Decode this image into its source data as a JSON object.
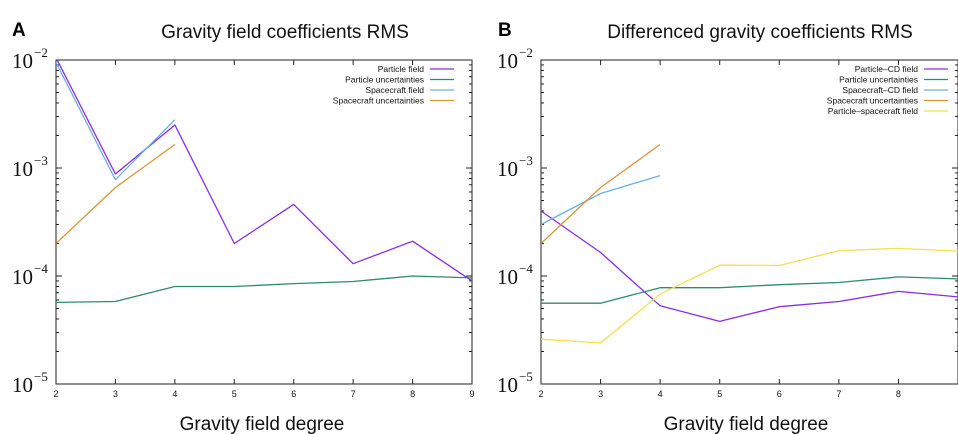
{
  "chart_data": [
    {
      "type": "line",
      "panel": "A",
      "title": "Gravity field coefficients RMS",
      "xlabel": "Gravity field degree",
      "ylabel": "",
      "yscale": "log",
      "xlim": [
        2,
        9
      ],
      "ylim": [
        1e-05,
        0.01
      ],
      "xticks": [
        "2",
        "3",
        "4",
        "5",
        "6",
        "7",
        "8",
        "9"
      ],
      "yticks": [
        {
          "value": 0.01,
          "base": "10",
          "exp": "−2"
        },
        {
          "value": 0.001,
          "base": "10",
          "exp": "−3"
        },
        {
          "value": 0.0001,
          "base": "10",
          "exp": "−4"
        },
        {
          "value": 1e-05,
          "base": "10",
          "exp": "−5"
        }
      ],
      "legend_position": "top-right",
      "series": [
        {
          "name": "Particle field",
          "color": "#8a2be2",
          "x": [
            2,
            3,
            4,
            5,
            6,
            7,
            8,
            9
          ],
          "values": [
            0.0105,
            0.00088,
            0.0025,
            0.0002,
            0.00046,
            0.00013,
            0.00021,
            9e-05
          ]
        },
        {
          "name": "Particle uncertainties",
          "color": "#2e8b6e",
          "x": [
            2,
            3,
            4,
            5,
            6,
            7,
            8,
            9
          ],
          "values": [
            5.7e-05,
            5.8e-05,
            8e-05,
            8e-05,
            8.5e-05,
            8.9e-05,
            0.0001,
            9.6e-05
          ]
        },
        {
          "name": "Spacecraft field",
          "color": "#6aaee6",
          "x": [
            2,
            3,
            4
          ],
          "values": [
            0.0095,
            0.00078,
            0.0028
          ]
        },
        {
          "name": "Spacecraft uncertainties",
          "color": "#d8953a",
          "x": [
            2,
            3,
            4
          ],
          "values": [
            0.0002,
            0.00066,
            0.00165
          ]
        }
      ]
    },
    {
      "type": "line",
      "panel": "B",
      "title": "Differenced gravity coefficients RMS",
      "xlabel": "Gravity field degree",
      "ylabel": "",
      "yscale": "log",
      "xlim": [
        2,
        9
      ],
      "ylim": [
        1e-05,
        0.01
      ],
      "xticks": [
        "2",
        "3",
        "4",
        "5",
        "6",
        "7",
        "8"
      ],
      "yticks": [
        {
          "value": 0.01,
          "base": "10",
          "exp": "−2"
        },
        {
          "value": 0.001,
          "base": "10",
          "exp": "−3"
        },
        {
          "value": 0.0001,
          "base": "10",
          "exp": "−4"
        },
        {
          "value": 1e-05,
          "base": "10",
          "exp": "−5"
        }
      ],
      "legend_position": "top-right",
      "series": [
        {
          "name": "Particle–CD field",
          "color": "#8a2be2",
          "x": [
            2,
            3,
            4,
            5,
            6,
            7,
            8,
            9
          ],
          "values": [
            0.0004,
            0.000165,
            5.3e-05,
            3.8e-05,
            5.2e-05,
            5.8e-05,
            7.2e-05,
            6.4e-05
          ]
        },
        {
          "name": "Particle uncertainties",
          "color": "#2e8b6e",
          "x": [
            2,
            3,
            4,
            5,
            6,
            7,
            8,
            9
          ],
          "values": [
            5.6e-05,
            5.6e-05,
            7.8e-05,
            7.8e-05,
            8.3e-05,
            8.7e-05,
            9.8e-05,
            9.4e-05
          ]
        },
        {
          "name": "Spacecraft–CD field",
          "color": "#6aaee6",
          "x": [
            2,
            3,
            4
          ],
          "values": [
            0.0003,
            0.00058,
            0.00085
          ]
        },
        {
          "name": "Spacecraft uncertainties",
          "color": "#d8953a",
          "x": [
            2,
            3,
            4
          ],
          "values": [
            0.0002,
            0.00066,
            0.00165
          ]
        },
        {
          "name": "Particle–spacecraft field",
          "color": "#f4e04d",
          "x": [
            2,
            3,
            4,
            5,
            6,
            7,
            8,
            9
          ],
          "values": [
            2.6e-05,
            2.4e-05,
            6.8e-05,
            0.000126,
            0.000125,
            0.000172,
            0.00018,
            0.00017
          ]
        }
      ]
    }
  ]
}
